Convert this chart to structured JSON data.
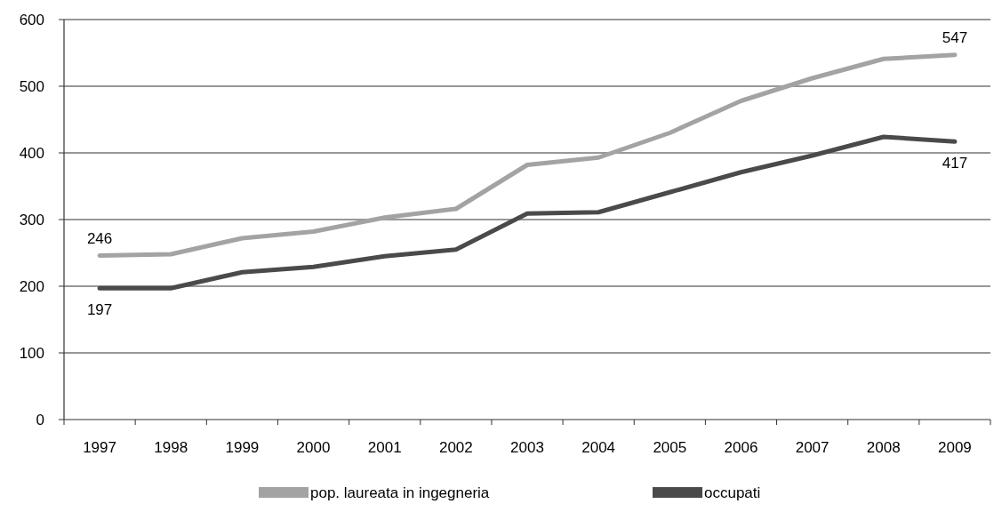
{
  "chart_data": {
    "type": "line",
    "categories": [
      "1997",
      "1998",
      "1999",
      "2000",
      "2001",
      "2002",
      "2003",
      "2004",
      "2005",
      "2006",
      "2007",
      "2008",
      "2009"
    ],
    "series": [
      {
        "name": "pop. laureata in ingegneria",
        "color": "#a3a3a3",
        "values": [
          246,
          248,
          272,
          282,
          303,
          316,
          382,
          393,
          430,
          478,
          512,
          541,
          547
        ],
        "value_labels": [
          "246",
          null,
          null,
          null,
          null,
          null,
          null,
          null,
          null,
          null,
          null,
          null,
          "547"
        ]
      },
      {
        "name": "occupati",
        "color": "#4a4a4a",
        "values": [
          197,
          197,
          221,
          229,
          245,
          255,
          309,
          311,
          341,
          371,
          396,
          424,
          417
        ],
        "value_labels": [
          "197",
          null,
          null,
          null,
          null,
          null,
          null,
          null,
          null,
          null,
          null,
          null,
          "417"
        ]
      }
    ],
    "ylim": [
      0,
      600
    ],
    "yticks": [
      0,
      100,
      200,
      300,
      400,
      500,
      600
    ],
    "grid": "y",
    "legend": "bottom",
    "marker": "none",
    "line_style": "solid"
  }
}
